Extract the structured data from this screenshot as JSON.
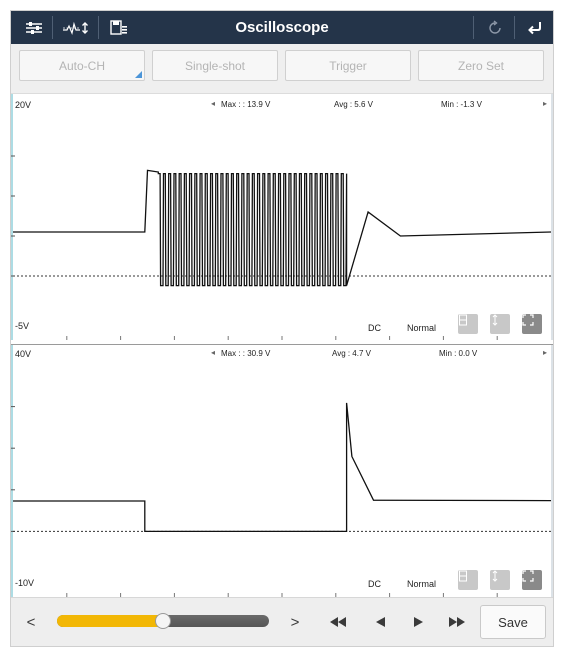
{
  "app": {
    "title": "Oscilloscope",
    "colors": {
      "title_bar": "#243449",
      "accent": "#f2b705",
      "trace": "#111111"
    }
  },
  "titlebar_icons": {
    "left": [
      "settings-sliders-icon",
      "signal-adjust-icon",
      "save-record-icon"
    ],
    "right": [
      "refresh-icon",
      "back-icon"
    ]
  },
  "toolbar": {
    "buttons": [
      "Auto-CH",
      "Single-shot",
      "Trigger",
      "Zero Set"
    ]
  },
  "channels": [
    {
      "y_top_label": "20V",
      "y_bottom_label": "-5V",
      "ylim": [
        -5,
        20
      ],
      "max_text": "Max : : 13.9 V",
      "avg_text": "Avg : 5.6 V",
      "min_text": "Min : -1.3 V",
      "coupling": "DC",
      "mode": "Normal"
    },
    {
      "y_top_label": "40V",
      "y_bottom_label": "-10V",
      "ylim": [
        -10,
        40
      ],
      "max_text": "Max : : 30.9 V",
      "avg_text": "Avg : 4.7 V",
      "min_text": "Min : 0.0 V",
      "coupling": "DC",
      "mode": "Normal"
    }
  ],
  "chart_data": [
    {
      "type": "line",
      "ylim": [
        -5,
        20
      ],
      "grid": false,
      "reference_level": 0,
      "series": [
        {
          "segments": [
            {
              "x": [
                0,
                0.245
              ],
              "y": [
                5.5,
                5.5
              ]
            },
            {
              "x": [
                0.245,
                0.25,
                0.27
              ],
              "y": [
                5.5,
                13.2,
                13.0
              ]
            },
            {
              "x": [
                0.27,
                0.62
              ],
              "burst_high": 12.8,
              "burst_low": -1.2,
              "pulses": 36
            },
            {
              "x": [
                0.62,
                0.66,
                0.72,
                1.0
              ],
              "y": [
                -1.2,
                8.0,
                5.0,
                5.5
              ]
            }
          ]
        }
      ]
    },
    {
      "type": "line",
      "ylim": [
        -10,
        40
      ],
      "grid": false,
      "reference_level": 0,
      "series": [
        {
          "segments": [
            {
              "x": [
                0,
                0.245
              ],
              "y": [
                7.3,
                7.3
              ]
            },
            {
              "x": [
                0.245,
                0.62
              ],
              "y": [
                0.0,
                0.0
              ]
            },
            {
              "x": [
                0.62,
                0.63,
                0.67,
                1.0
              ],
              "y": [
                30.9,
                18.0,
                7.5,
                7.4
              ]
            }
          ]
        }
      ]
    }
  ],
  "bottombar": {
    "prev_label": "<",
    "next_label": ">",
    "slider_value": 0.5,
    "save_label": "Save",
    "transport_icons": [
      "rewind-icon",
      "step-back-icon",
      "step-forward-icon",
      "fast-forward-icon"
    ]
  }
}
